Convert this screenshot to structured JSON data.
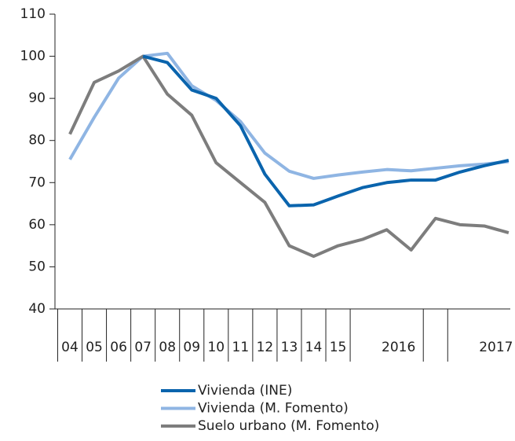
{
  "chart_data": {
    "type": "line",
    "categories": [
      "04",
      "05",
      "06",
      "07",
      "08",
      "09",
      "10",
      "11",
      "12",
      "13",
      "14",
      "15",
      null,
      "2016",
      null,
      null,
      null,
      "2017",
      null
    ],
    "series": [
      {
        "name": "Vivienda (INE)",
        "color": "#0a64ad",
        "values": [
          null,
          null,
          null,
          100,
          98.5,
          92,
          90,
          83.5,
          72,
          64.5,
          64.7,
          66.8,
          68.8,
          70,
          70.6,
          70.6,
          72.5,
          74,
          75.3
        ]
      },
      {
        "name": "Vivienda (M. Fomento)",
        "color": "#8fb5e3",
        "values": [
          75.5,
          85.5,
          94.8,
          100,
          100.7,
          93,
          89.5,
          84.5,
          77,
          72.7,
          71,
          71.8,
          72.5,
          73.1,
          72.8,
          73.4,
          74,
          74.4,
          75
        ]
      },
      {
        "name": "Suelo urbano (M. Fomento)",
        "color": "#7d7d7d",
        "values": [
          81.5,
          93.8,
          96.5,
          100,
          91,
          86,
          74.7,
          70,
          65.3,
          55,
          52.5,
          55,
          56.5,
          58.8,
          54,
          61.5,
          60,
          59.7,
          58.1
        ]
      }
    ],
    "ylim": [
      40,
      110
    ],
    "yticks": [
      40,
      50,
      60,
      70,
      80,
      90,
      100,
      110
    ]
  }
}
